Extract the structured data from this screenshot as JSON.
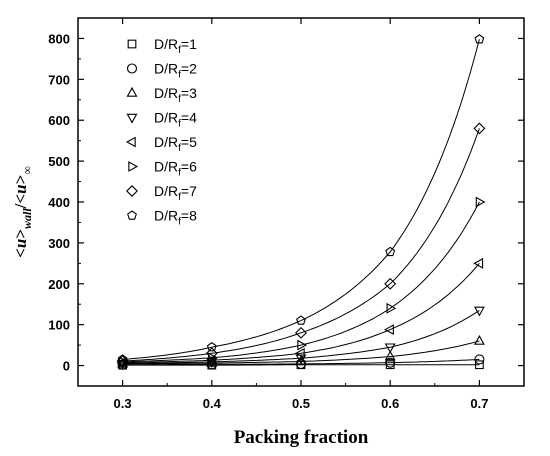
{
  "chart_data": {
    "type": "scatter",
    "xlabel": "Packing fraction",
    "ylabel": {
      "lt1": "<",
      "u1": "u",
      "gt1": ">",
      "sub1": "wall",
      "slash": "/",
      "lt2": "<",
      "u2": "u",
      "gt2": ">",
      "sub2": "∞"
    },
    "xlim": [
      0.25,
      0.75
    ],
    "ylim": [
      -50,
      850
    ],
    "xticks": [
      "0.3",
      "0.4",
      "0.5",
      "0.6",
      "0.7"
    ],
    "yticks": [
      "0",
      "100",
      "200",
      "300",
      "400",
      "500",
      "600",
      "700",
      "800"
    ],
    "legend_position": "top-left",
    "x": [
      0.3,
      0.4,
      0.5,
      0.6,
      0.7
    ],
    "series": [
      {
        "name": {
          "pre": "D/R",
          "sub": "f",
          "post": "=1"
        },
        "marker": "square",
        "values": [
          1,
          1,
          2,
          2,
          2
        ]
      },
      {
        "name": {
          "pre": "D/R",
          "sub": "f",
          "post": "=2"
        },
        "marker": "circle",
        "values": [
          2,
          3,
          4,
          7,
          15
        ]
      },
      {
        "name": {
          "pre": "D/R",
          "sub": "f",
          "post": "=3"
        },
        "marker": "triangle-up",
        "values": [
          4,
          6,
          10,
          22,
          60
        ]
      },
      {
        "name": {
          "pre": "D/R",
          "sub": "f",
          "post": "=4"
        },
        "marker": "triangle-down",
        "values": [
          5,
          9,
          18,
          45,
          135
        ]
      },
      {
        "name": {
          "pre": "D/R",
          "sub": "f",
          "post": "=5"
        },
        "marker": "triangle-left",
        "values": [
          7,
          13,
          30,
          88,
          250
        ]
      },
      {
        "name": {
          "pre": "D/R",
          "sub": "f",
          "post": "=6"
        },
        "marker": "triangle-right",
        "values": [
          9,
          19,
          50,
          140,
          400
        ]
      },
      {
        "name": {
          "pre": "D/R",
          "sub": "f",
          "post": "=7"
        },
        "marker": "diamond",
        "values": [
          11,
          30,
          80,
          200,
          580
        ]
      },
      {
        "name": {
          "pre": "D/R",
          "sub": "f",
          "post": "=8"
        },
        "marker": "pentagon",
        "values": [
          15,
          45,
          110,
          278,
          798
        ]
      }
    ]
  }
}
